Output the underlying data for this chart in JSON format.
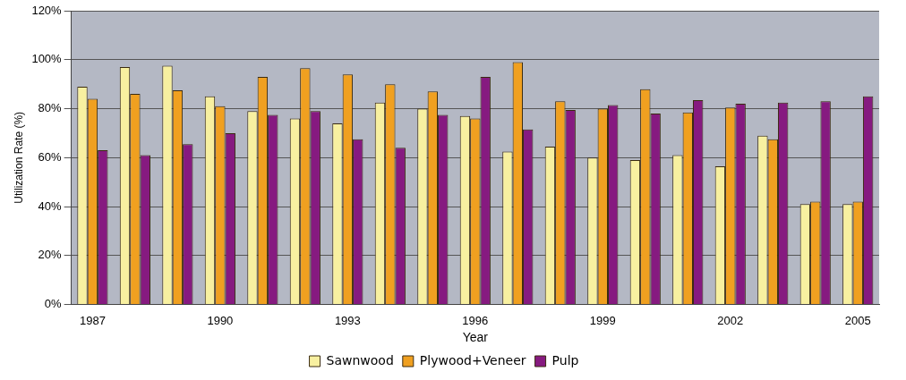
{
  "chart_data": {
    "type": "bar",
    "xlabel": "Year",
    "ylabel": "Utilization Rate (%)",
    "categories": [
      "1987",
      null,
      null,
      "1990",
      null,
      null,
      "1993",
      null,
      null,
      "1996",
      null,
      null,
      "1999",
      null,
      null,
      "2002",
      null,
      null,
      "2005"
    ],
    "series": [
      {
        "name": "Sawnwood",
        "color": "#f8f0a0",
        "values": [
          89,
          97,
          97.5,
          85,
          79,
          76,
          74,
          82.5,
          80,
          77,
          62.5,
          64.5,
          60,
          59,
          61,
          56.5,
          69,
          41,
          41
        ]
      },
      {
        "name": "Plywood+Veneer",
        "color": "#f0a020",
        "values": [
          84,
          86,
          87.5,
          81,
          93,
          96.5,
          94,
          90,
          87,
          76,
          99,
          83,
          80,
          88,
          78.5,
          80.5,
          67.5,
          42,
          42
        ]
      },
      {
        "name": "Pulp",
        "color": "#861a80",
        "values": [
          63,
          61,
          65.5,
          70,
          77.5,
          79,
          67.5,
          64,
          77.5,
          93,
          71.5,
          79.5,
          81.5,
          78,
          83.5,
          82,
          82.5,
          83,
          85
        ]
      }
    ],
    "ylim": [
      0,
      120
    ],
    "yticks": [
      {
        "value": 0,
        "label": "0%"
      },
      {
        "value": 20,
        "label": "20%"
      },
      {
        "value": 40,
        "label": "40%"
      },
      {
        "value": 60,
        "label": "60%"
      },
      {
        "value": 80,
        "label": "80%"
      },
      {
        "value": 100,
        "label": "100%"
      },
      {
        "value": 120,
        "label": "120%"
      }
    ],
    "grid": "y",
    "legend": "bottom"
  }
}
